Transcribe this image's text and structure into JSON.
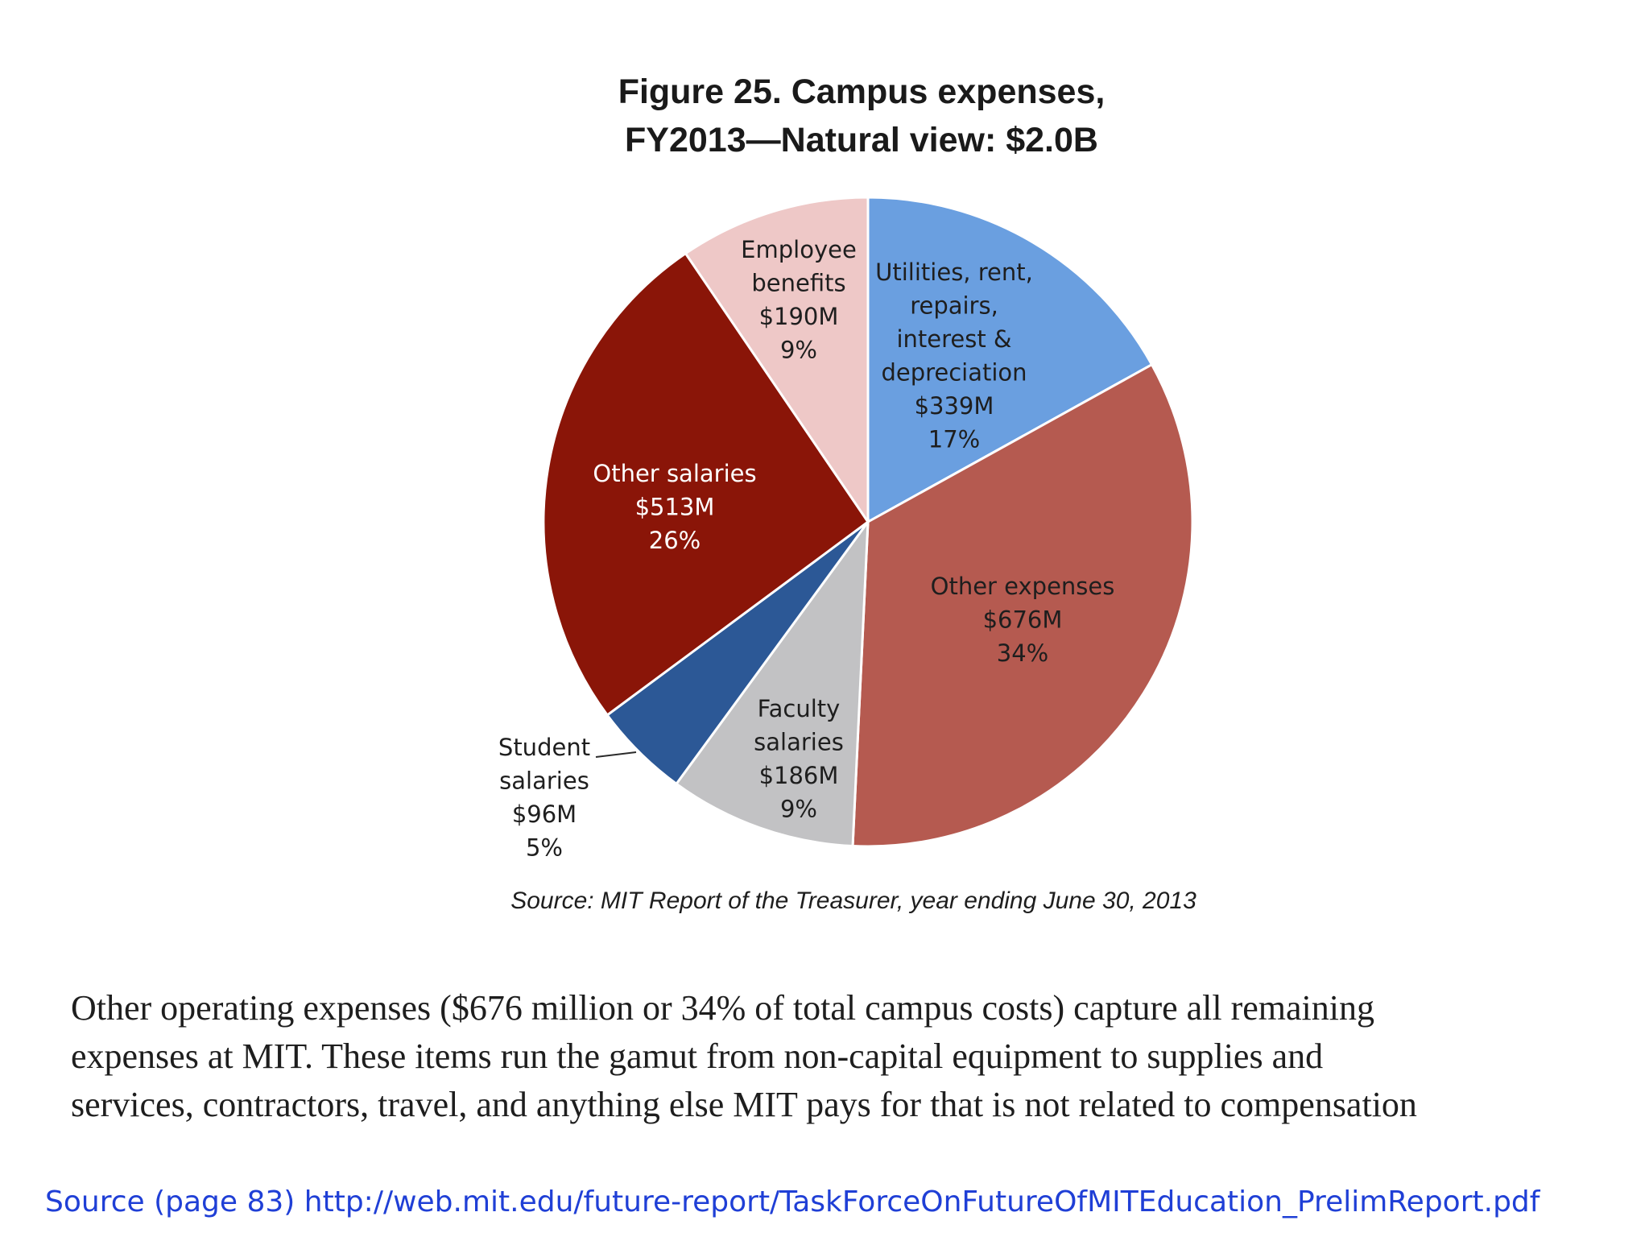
{
  "chart_data": {
    "type": "pie",
    "title": [
      "Figure 25. Campus expenses,",
      "FY2013—Natural view: $2.0B"
    ],
    "slices": [
      {
        "name": [
          "Utilities, rent,",
          "repairs,",
          "interest &",
          "depreciation"
        ],
        "value_label": "$339M",
        "percent_label": "17%",
        "value": 339,
        "color": "#6a9fe0"
      },
      {
        "name": [
          "Other expenses"
        ],
        "value_label": "$676M",
        "percent_label": "34%",
        "value": 676,
        "color": "#b55a50"
      },
      {
        "name": [
          "Faculty",
          "salaries"
        ],
        "value_label": "$186M",
        "percent_label": "9%",
        "value": 186,
        "color": "#c2c2c4"
      },
      {
        "name": [
          "Student",
          "salaries"
        ],
        "value_label": "$96M",
        "percent_label": "5%",
        "value": 96,
        "color": "#2c5896"
      },
      {
        "name": [
          "Other salaries"
        ],
        "value_label": "$513M",
        "percent_label": "26%",
        "value": 513,
        "color": "#8a1508"
      },
      {
        "name": [
          "Employee",
          "benefits"
        ],
        "value_label": "$190M",
        "percent_label": "9%",
        "value": 190,
        "color": "#eec8c7"
      }
    ],
    "start_angle": "12 o'clock",
    "direction": "clockwise",
    "legend": "none",
    "source": "Source: MIT Report of the Treasurer, year ending June 30, 2013"
  },
  "paragraph": [
    "Other operating expenses ($676 million or 34% of total campus costs) capture all remaining",
    "expenses at MIT. These items run the gamut from non-capital equipment to supplies and",
    "services, contractors, travel, and anything else MIT pays for that is not related to compensation"
  ],
  "footer": {
    "text": "Source (page 83) http://web.mit.edu/future-report/TaskForceOnFutureOfMITEducation_PrelimReport.pdf"
  }
}
